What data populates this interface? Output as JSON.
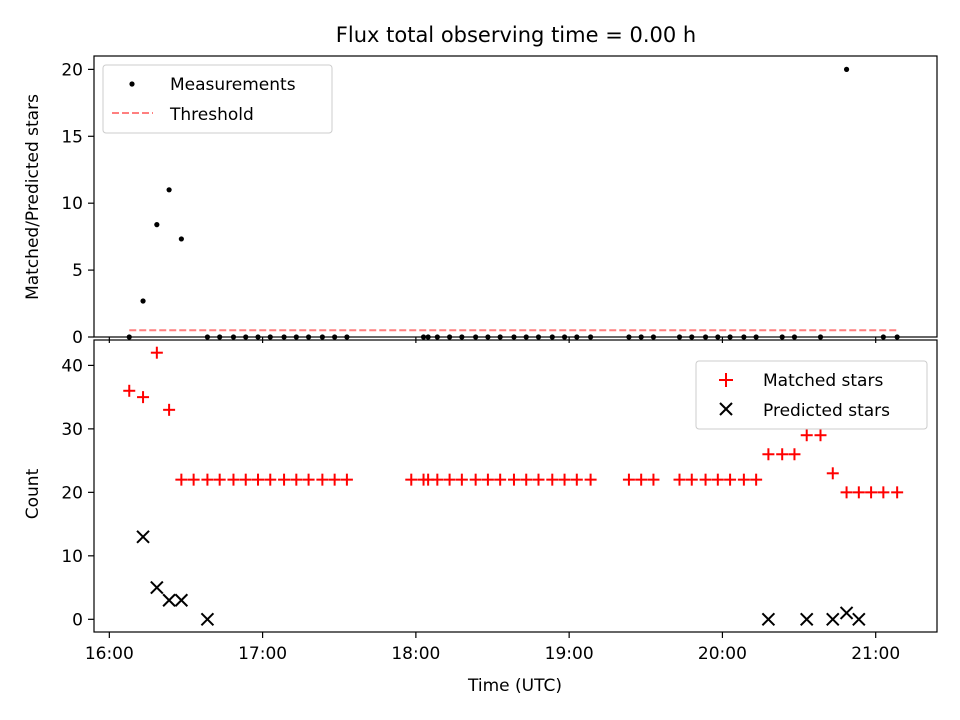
{
  "chart_data": [
    {
      "type": "scatter",
      "title": "Flux total observing time = 0.00 h",
      "xlabel": "",
      "ylabel": "Matched/Predicted stars",
      "xlim": [
        15.9,
        21.4
      ],
      "ylim": [
        0,
        21
      ],
      "yticks": [
        0,
        5,
        10,
        15,
        20
      ],
      "legend": {
        "position": "top-left",
        "entries": [
          "Measurements",
          "Threshold"
        ]
      },
      "series": [
        {
          "name": "Measurements",
          "marker": "dot",
          "color": "#000000",
          "points": [
            [
              16.13,
              0
            ],
            [
              16.22,
              2.69
            ],
            [
              16.31,
              8.4
            ],
            [
              16.39,
              11.0
            ],
            [
              16.47,
              7.33
            ],
            [
              16.64,
              0
            ],
            [
              16.72,
              0
            ],
            [
              16.81,
              0
            ],
            [
              16.89,
              0
            ],
            [
              16.97,
              0
            ],
            [
              17.05,
              0
            ],
            [
              17.14,
              0
            ],
            [
              17.22,
              0
            ],
            [
              17.3,
              0
            ],
            [
              17.39,
              0
            ],
            [
              17.47,
              0
            ],
            [
              17.55,
              0
            ],
            [
              18.05,
              0
            ],
            [
              18.08,
              0
            ],
            [
              18.14,
              0
            ],
            [
              18.22,
              0
            ],
            [
              18.3,
              0
            ],
            [
              18.39,
              0
            ],
            [
              18.47,
              0
            ],
            [
              18.55,
              0
            ],
            [
              18.64,
              0
            ],
            [
              18.72,
              0
            ],
            [
              18.8,
              0
            ],
            [
              18.89,
              0
            ],
            [
              18.97,
              0
            ],
            [
              19.05,
              0
            ],
            [
              19.14,
              0
            ],
            [
              19.39,
              0
            ],
            [
              19.47,
              0
            ],
            [
              19.55,
              0
            ],
            [
              19.72,
              0
            ],
            [
              19.8,
              0
            ],
            [
              19.89,
              0
            ],
            [
              19.97,
              0
            ],
            [
              20.05,
              0
            ],
            [
              20.14,
              0
            ],
            [
              20.22,
              0
            ],
            [
              20.39,
              0
            ],
            [
              20.47,
              0
            ],
            [
              20.64,
              0
            ],
            [
              20.81,
              20.0
            ],
            [
              21.05,
              0
            ],
            [
              21.14,
              0
            ]
          ]
        },
        {
          "name": "Threshold",
          "type": "line",
          "style": "dashed",
          "color": "#ff7f7f",
          "x": [
            16.13,
            21.14
          ],
          "y": [
            0.5,
            0.5
          ]
        }
      ]
    },
    {
      "type": "scatter",
      "title": "",
      "xlabel": "Time (UTC)",
      "ylabel": "Count",
      "xlim": [
        15.9,
        21.4
      ],
      "ylim": [
        -2,
        44
      ],
      "yticks": [
        0,
        10,
        20,
        30,
        40
      ],
      "xticks": [
        16,
        17,
        18,
        19,
        20,
        21
      ],
      "xtick_labels": [
        "16:00",
        "17:00",
        "18:00",
        "19:00",
        "20:00",
        "21:00"
      ],
      "legend": {
        "position": "top-right",
        "entries": [
          "Matched stars",
          "Predicted stars"
        ]
      },
      "series": [
        {
          "name": "Matched stars",
          "marker": "plus",
          "color": "#ff0000",
          "points": [
            [
              16.13,
              36
            ],
            [
              16.22,
              35
            ],
            [
              16.31,
              42
            ],
            [
              16.39,
              33
            ],
            [
              16.47,
              22
            ],
            [
              16.55,
              22
            ],
            [
              16.64,
              22
            ],
            [
              16.72,
              22
            ],
            [
              16.81,
              22
            ],
            [
              16.89,
              22
            ],
            [
              16.97,
              22
            ],
            [
              17.05,
              22
            ],
            [
              17.14,
              22
            ],
            [
              17.22,
              22
            ],
            [
              17.3,
              22
            ],
            [
              17.39,
              22
            ],
            [
              17.47,
              22
            ],
            [
              17.55,
              22
            ],
            [
              17.97,
              22
            ],
            [
              18.05,
              22
            ],
            [
              18.08,
              22
            ],
            [
              18.14,
              22
            ],
            [
              18.22,
              22
            ],
            [
              18.3,
              22
            ],
            [
              18.39,
              22
            ],
            [
              18.47,
              22
            ],
            [
              18.55,
              22
            ],
            [
              18.64,
              22
            ],
            [
              18.72,
              22
            ],
            [
              18.8,
              22
            ],
            [
              18.89,
              22
            ],
            [
              18.97,
              22
            ],
            [
              19.05,
              22
            ],
            [
              19.14,
              22
            ],
            [
              19.39,
              22
            ],
            [
              19.47,
              22
            ],
            [
              19.55,
              22
            ],
            [
              19.72,
              22
            ],
            [
              19.8,
              22
            ],
            [
              19.89,
              22
            ],
            [
              19.97,
              22
            ],
            [
              20.05,
              22
            ],
            [
              20.14,
              22
            ],
            [
              20.22,
              22
            ],
            [
              20.3,
              26
            ],
            [
              20.39,
              26
            ],
            [
              20.47,
              26
            ],
            [
              20.55,
              29
            ],
            [
              20.64,
              29
            ],
            [
              20.72,
              23
            ],
            [
              20.81,
              20
            ],
            [
              20.89,
              20
            ],
            [
              20.97,
              20
            ],
            [
              21.05,
              20
            ],
            [
              21.14,
              20
            ]
          ]
        },
        {
          "name": "Predicted stars",
          "marker": "x",
          "color": "#000000",
          "points": [
            [
              16.22,
              13
            ],
            [
              16.31,
              5
            ],
            [
              16.39,
              3
            ],
            [
              16.47,
              3
            ],
            [
              16.64,
              0
            ],
            [
              20.3,
              0
            ],
            [
              20.55,
              0
            ],
            [
              20.72,
              0
            ],
            [
              20.81,
              1
            ],
            [
              20.89,
              0
            ]
          ]
        }
      ]
    }
  ]
}
